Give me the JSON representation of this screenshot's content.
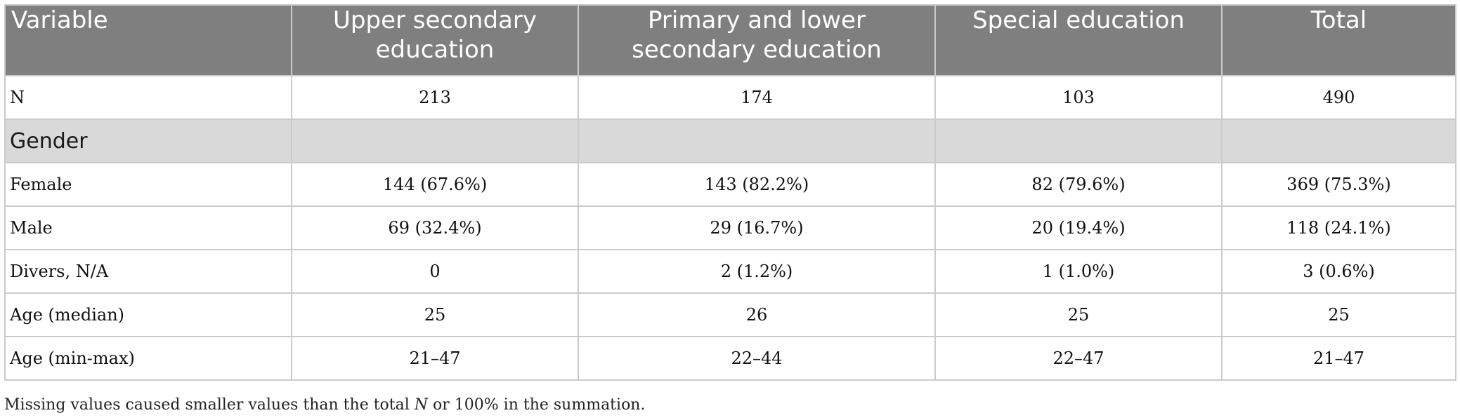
{
  "table": {
    "headers": [
      "Variable",
      "Upper secondary education",
      "Primary and lower secondary education",
      "Special education",
      "Total"
    ],
    "rows": [
      {
        "type": "data",
        "cells": [
          "N",
          "213",
          "174",
          "103",
          "490"
        ]
      },
      {
        "type": "section",
        "cells": [
          "Gender",
          "",
          "",
          "",
          ""
        ]
      },
      {
        "type": "data",
        "cells": [
          "Female",
          "144 (67.6%)",
          "143 (82.2%)",
          "82 (79.6%)",
          "369 (75.3%)"
        ]
      },
      {
        "type": "data",
        "cells": [
          "Male",
          "69 (32.4%)",
          "29 (16.7%)",
          "20 (19.4%)",
          "118 (24.1%)"
        ]
      },
      {
        "type": "data",
        "cells": [
          "Divers, N/A",
          "0",
          "2 (1.2%)",
          "1 (1.0%)",
          "3 (0.6%)"
        ]
      },
      {
        "type": "data",
        "cells": [
          "Age (median)",
          "25",
          "26",
          "25",
          "25"
        ]
      },
      {
        "type": "data",
        "cells": [
          "Age (min-max)",
          "21–47",
          "22–44",
          "22–47",
          "21–47"
        ]
      }
    ]
  },
  "note": {
    "before": "Missing values caused smaller values than the total ",
    "italic": "N",
    "after": " or 100% in the summation."
  }
}
